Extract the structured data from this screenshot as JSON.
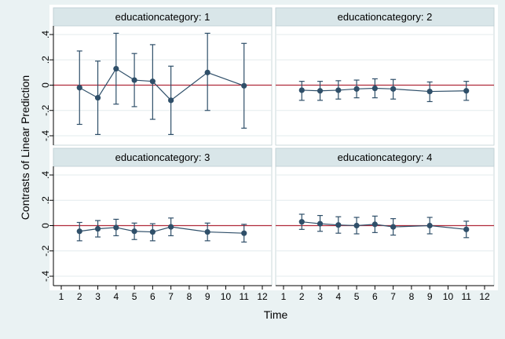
{
  "chart_data": {
    "type": "scatter",
    "subtype": "line with confidence-interval error bars, 2x2 facets",
    "xlabel": "Time",
    "ylabel": "Contrasts of Linear Prediction",
    "xlim": [
      1,
      12
    ],
    "ylim": [
      -0.4,
      0.4
    ],
    "x_ticks": [
      1,
      2,
      3,
      4,
      5,
      6,
      7,
      8,
      9,
      10,
      11,
      12
    ],
    "y_ticks": [
      {
        "value": 0.4,
        "label": ".4"
      },
      {
        "value": 0.2,
        "label": ".2"
      },
      {
        "value": 0,
        "label": "0"
      },
      {
        "value": -0.2,
        "label": "-.2"
      },
      {
        "value": -0.4,
        "label": "-.4"
      }
    ],
    "reference_line": {
      "y": 0,
      "color": "#c0392b"
    },
    "grid": true,
    "colors": {
      "series": "#2f4f69",
      "reference": "#b02a3a",
      "plot_bg": "#ffffff",
      "outer_bg": "#eaf2f3",
      "header_bg": "#d9e6e9",
      "grid": "#e3ebed"
    },
    "panels": [
      {
        "title": "educationcategory: 1",
        "points": [
          {
            "x": 2,
            "y": -0.02,
            "lo": -0.31,
            "hi": 0.27
          },
          {
            "x": 3,
            "y": -0.1,
            "lo": -0.39,
            "hi": 0.19
          },
          {
            "x": 4,
            "y": 0.13,
            "lo": -0.15,
            "hi": 0.41
          },
          {
            "x": 5,
            "y": 0.04,
            "lo": -0.17,
            "hi": 0.25
          },
          {
            "x": 6,
            "y": 0.03,
            "lo": -0.27,
            "hi": 0.32
          },
          {
            "x": 7,
            "y": -0.12,
            "lo": -0.39,
            "hi": 0.15
          },
          {
            "x": 9,
            "y": 0.1,
            "lo": -0.2,
            "hi": 0.41
          },
          {
            "x": 11,
            "y": -0.005,
            "lo": -0.34,
            "hi": 0.33
          }
        ]
      },
      {
        "title": "educationcategory: 2",
        "points": [
          {
            "x": 2,
            "y": -0.04,
            "lo": -0.12,
            "hi": 0.03
          },
          {
            "x": 3,
            "y": -0.045,
            "lo": -0.12,
            "hi": 0.03
          },
          {
            "x": 4,
            "y": -0.04,
            "lo": -0.11,
            "hi": 0.035
          },
          {
            "x": 5,
            "y": -0.03,
            "lo": -0.1,
            "hi": 0.04
          },
          {
            "x": 6,
            "y": -0.025,
            "lo": -0.1,
            "hi": 0.05
          },
          {
            "x": 7,
            "y": -0.03,
            "lo": -0.11,
            "hi": 0.045
          },
          {
            "x": 9,
            "y": -0.05,
            "lo": -0.13,
            "hi": 0.025
          },
          {
            "x": 11,
            "y": -0.045,
            "lo": -0.12,
            "hi": 0.03
          }
        ]
      },
      {
        "title": "educationcategory: 3",
        "points": [
          {
            "x": 2,
            "y": -0.045,
            "lo": -0.12,
            "hi": 0.025
          },
          {
            "x": 3,
            "y": -0.025,
            "lo": -0.09,
            "hi": 0.04
          },
          {
            "x": 4,
            "y": -0.015,
            "lo": -0.08,
            "hi": 0.05
          },
          {
            "x": 5,
            "y": -0.045,
            "lo": -0.11,
            "hi": 0.02
          },
          {
            "x": 6,
            "y": -0.05,
            "lo": -0.12,
            "hi": 0.015
          },
          {
            "x": 7,
            "y": -0.01,
            "lo": -0.08,
            "hi": 0.06
          },
          {
            "x": 9,
            "y": -0.05,
            "lo": -0.12,
            "hi": 0.02
          },
          {
            "x": 11,
            "y": -0.06,
            "lo": -0.13,
            "hi": 0.01
          }
        ]
      },
      {
        "title": "educationcategory: 4",
        "points": [
          {
            "x": 2,
            "y": 0.03,
            "lo": -0.03,
            "hi": 0.09
          },
          {
            "x": 3,
            "y": 0.015,
            "lo": -0.045,
            "hi": 0.08
          },
          {
            "x": 4,
            "y": 0.005,
            "lo": -0.06,
            "hi": 0.07
          },
          {
            "x": 5,
            "y": 0.0,
            "lo": -0.065,
            "hi": 0.065
          },
          {
            "x": 6,
            "y": 0.01,
            "lo": -0.055,
            "hi": 0.075
          },
          {
            "x": 7,
            "y": -0.01,
            "lo": -0.075,
            "hi": 0.055
          },
          {
            "x": 9,
            "y": 0.0,
            "lo": -0.065,
            "hi": 0.065
          },
          {
            "x": 11,
            "y": -0.03,
            "lo": -0.095,
            "hi": 0.035
          }
        ]
      }
    ]
  }
}
